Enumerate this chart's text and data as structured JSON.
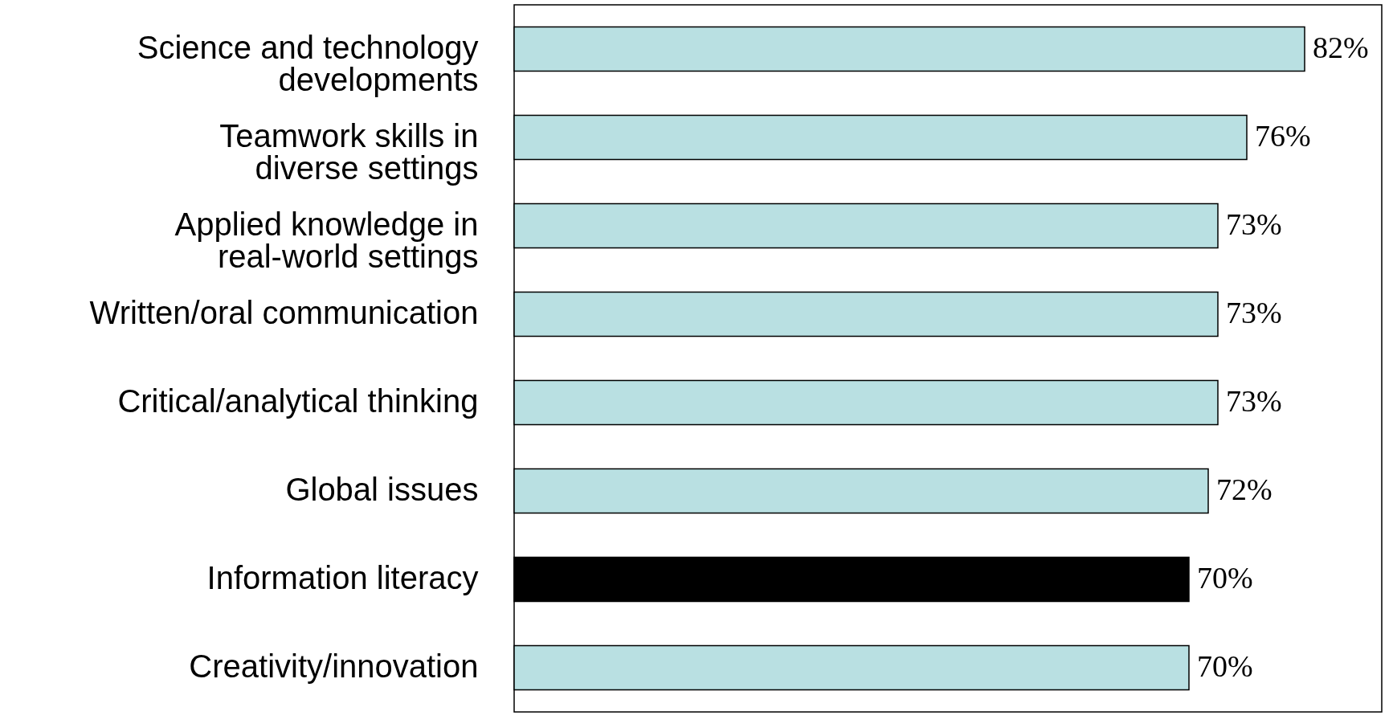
{
  "chart_data": {
    "type": "bar",
    "orientation": "horizontal",
    "categories": [
      "Science and technology\ndevelopments",
      "Teamwork skills in\ndiverse settings",
      "Applied knowledge in\nreal-world settings",
      "Written/oral communication",
      "Critical/analytical thinking",
      "Global issues",
      "Information literacy",
      "Creativity/innovation"
    ],
    "values": [
      82,
      76,
      73,
      73,
      73,
      72,
      70,
      70
    ],
    "colors": [
      "#b9e0e2",
      "#b9e0e2",
      "#b9e0e2",
      "#b9e0e2",
      "#b9e0e2",
      "#b9e0e2",
      "#000000",
      "#b9e0e2"
    ],
    "value_labels": [
      "82%",
      "76%",
      "73%",
      "73%",
      "73%",
      "72%",
      "70%",
      "70%"
    ],
    "xlim": [
      0,
      90
    ]
  }
}
